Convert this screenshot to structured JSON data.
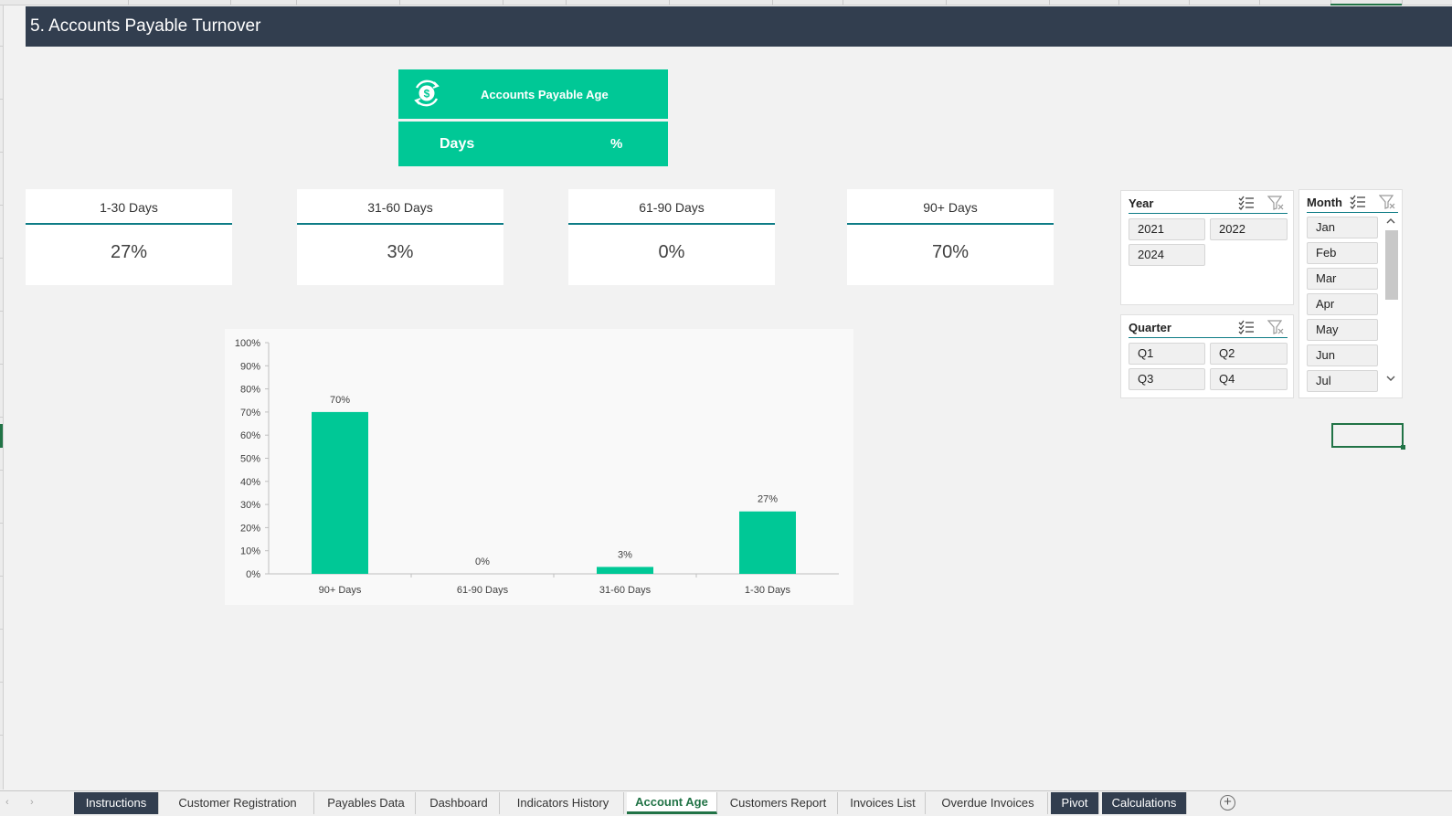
{
  "title": "5. Accounts Payable Turnover",
  "ap_header": {
    "label": "Accounts Payable Age",
    "col_days": "Days",
    "col_pct": "%"
  },
  "cards": [
    {
      "label": "1-30 Days",
      "value": "27%"
    },
    {
      "label": "31-60 Days",
      "value": "3%"
    },
    {
      "label": "61-90 Days",
      "value": "0%"
    },
    {
      "label": "90+ Days",
      "value": "70%"
    }
  ],
  "chart_data": {
    "type": "bar",
    "categories": [
      "90+ Days",
      "61-90 Days",
      "31-60 Days",
      "1-30 Days"
    ],
    "values": [
      70,
      0,
      3,
      27
    ],
    "data_labels": [
      "70%",
      "0%",
      "3%",
      "27%"
    ],
    "y_ticks": [
      "0%",
      "10%",
      "20%",
      "30%",
      "40%",
      "50%",
      "60%",
      "70%",
      "80%",
      "90%",
      "100%"
    ],
    "ylim": [
      0,
      100
    ],
    "color": "#00c896",
    "grid": false,
    "legend": "none"
  },
  "slicers": {
    "year": {
      "title": "Year",
      "items": [
        "2021",
        "2022",
        "2024"
      ]
    },
    "quarter": {
      "title": "Quarter",
      "items": [
        "Q1",
        "Q2",
        "Q3",
        "Q4"
      ]
    },
    "month": {
      "title": "Month",
      "items": [
        "Jan",
        "Feb",
        "Mar",
        "Apr",
        "May",
        "Jun",
        "Jul"
      ]
    }
  },
  "sheet_tabs": [
    {
      "label": "Instructions",
      "style": "dark"
    },
    {
      "label": "Customer Registration",
      "style": "normal"
    },
    {
      "label": "Payables Data",
      "style": "normal"
    },
    {
      "label": "Dashboard",
      "style": "normal"
    },
    {
      "label": "Indicators History",
      "style": "normal"
    },
    {
      "label": "Account Age",
      "style": "active"
    },
    {
      "label": "Customers Report",
      "style": "normal"
    },
    {
      "label": "Invoices List",
      "style": "normal"
    },
    {
      "label": "Overdue Invoices",
      "style": "normal"
    },
    {
      "label": "Pivot",
      "style": "dark"
    },
    {
      "label": "Calculations",
      "style": "dark"
    }
  ],
  "colors": {
    "accent": "#00c896",
    "header": "#323e4f",
    "rule": "#0e7c86",
    "excel_green": "#217346"
  },
  "icons": {
    "kpi": "dollar-cycle-icon",
    "multiselect": "multi-select-icon",
    "clear_filter": "clear-filter-icon",
    "add_sheet": "plus-circle-icon"
  }
}
